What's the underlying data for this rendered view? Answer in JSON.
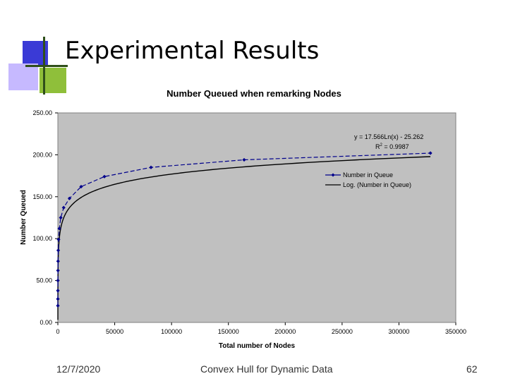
{
  "slide": {
    "title": "Experimental Results",
    "footer_date": "12/7/2020",
    "footer_center": "Convex Hull for Dynamic Data",
    "page_number": "62"
  },
  "colors": {
    "plot_bg": "#c0c0c0",
    "series": "#00008b",
    "trend": "#000000",
    "deco_blue": "#3a3ad6",
    "deco_violet": "#c6b9ff",
    "deco_green": "#5c8a1e"
  },
  "chart_data": {
    "type": "scatter",
    "title": "Number Queued when remarking Nodes",
    "xlabel": "Total number of Nodes",
    "ylabel": "Number Queued",
    "xlim": [
      0,
      350000
    ],
    "ylim": [
      0,
      250
    ],
    "x_ticks": [
      0,
      50000,
      100000,
      150000,
      200000,
      250000,
      300000,
      350000
    ],
    "x_tick_labels": [
      "0",
      "50000",
      "100000",
      "150000",
      "200000",
      "250000",
      "300000",
      "350000"
    ],
    "y_ticks": [
      0,
      50,
      100,
      150,
      200,
      250
    ],
    "y_tick_labels": [
      "0.00",
      "50.00",
      "100.00",
      "150.00",
      "200.00",
      "250.00"
    ],
    "grid": false,
    "series": [
      {
        "name": "Number in Queue",
        "x": [
          5,
          10,
          20,
          40,
          80,
          160,
          320,
          640,
          1280,
          2560,
          5120,
          10240,
          20480,
          40960,
          81920,
          163840,
          327680
        ],
        "y": [
          20,
          28,
          38,
          50,
          62,
          73,
          86,
          99,
          112,
          125,
          137,
          148,
          162,
          174,
          185,
          194,
          202
        ]
      }
    ],
    "trendline": {
      "name": "Log. (Number in Queue)",
      "type": "log",
      "a": 17.566,
      "b": -25.262,
      "x_range": [
        5,
        327680
      ]
    },
    "annotation": {
      "equation": "y = 17.566Ln(x) - 25.262",
      "r2_prefix": "R",
      "r2_exp": "2",
      "r2_value": " = 0.9987"
    },
    "legend": [
      "Number in Queue",
      "Log. (Number in Queue)"
    ],
    "legend_position": "top-right"
  }
}
